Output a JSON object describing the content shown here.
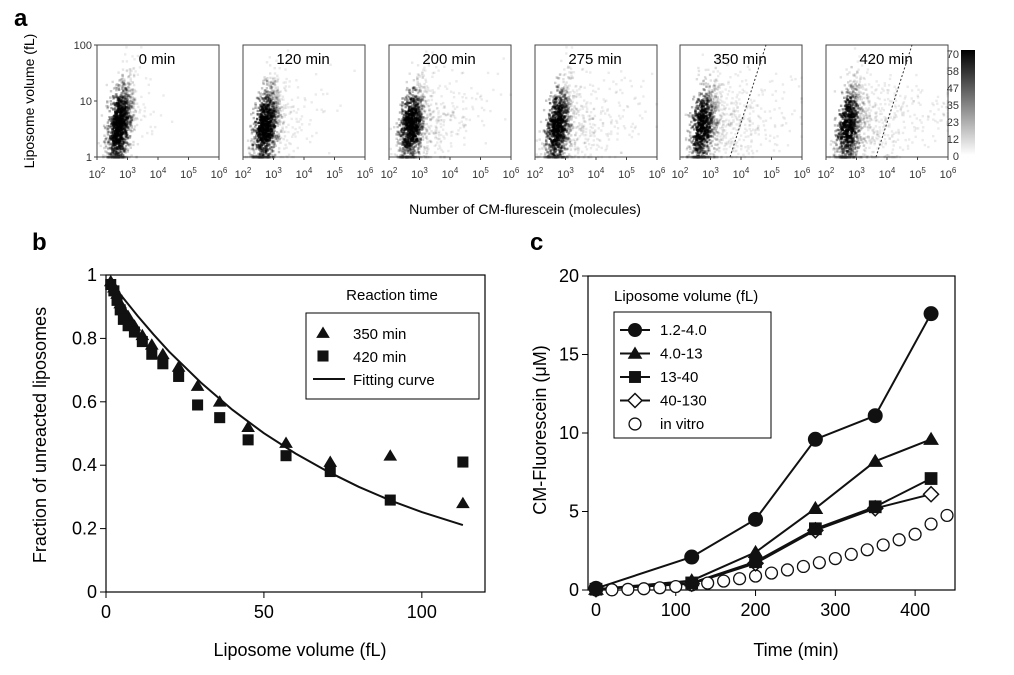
{
  "panel_labels": [
    "a",
    "b",
    "c"
  ],
  "chart_data": [
    {
      "panel": "a",
      "type": "heatmap",
      "ylabel": "Liposome volume (fL)",
      "xlabel": "Number of CM-flurescein (molecules)",
      "y_scale": "log",
      "x_scale": "log",
      "y_ticks": [
        "1",
        "10",
        "100"
      ],
      "x_ticks": [
        "10",
        "10",
        "10",
        "10",
        "10"
      ],
      "x_tick_exponents": [
        "2",
        "3",
        "4",
        "5",
        "6"
      ],
      "colorbar": {
        "ticks": [
          "70",
          "58",
          "47",
          "35",
          "23",
          "12",
          "0"
        ],
        "colors": [
          "#000000",
          "#ffffff"
        ]
      },
      "panels": [
        {
          "label": "0 min",
          "spread": 0.15,
          "divider": false
        },
        {
          "label": "120 min",
          "spread": 0.35,
          "divider": false
        },
        {
          "label": "200 min",
          "spread": 0.55,
          "divider": false
        },
        {
          "label": "275 min",
          "spread": 0.7,
          "divider": false
        },
        {
          "label": "350 min",
          "spread": 0.85,
          "divider": true
        },
        {
          "label": "420 min",
          "spread": 0.95,
          "divider": true
        }
      ]
    },
    {
      "panel": "b",
      "type": "scatter",
      "xlabel": "Liposome volume (fL)",
      "ylabel": "Fraction of unreacted liposomes",
      "xlim": [
        0,
        120
      ],
      "ylim": [
        0,
        1
      ],
      "x_ticks": [
        0,
        50,
        100
      ],
      "y_ticks": [
        0,
        0.2,
        0.4,
        0.6,
        0.8,
        1
      ],
      "legend_title": "Reaction time",
      "series": [
        {
          "name": "350 min",
          "marker": "triangle",
          "x": [
            1.5,
            2.5,
            3.5,
            4.5,
            5.5,
            7,
            9,
            11.5,
            14.5,
            18,
            23,
            29,
            36,
            45,
            57,
            71,
            90,
            113
          ],
          "y": [
            0.98,
            0.96,
            0.94,
            0.91,
            0.89,
            0.87,
            0.84,
            0.81,
            0.78,
            0.75,
            0.71,
            0.65,
            0.6,
            0.52,
            0.47,
            0.41,
            0.43,
            0.28
          ]
        },
        {
          "name": "420 min",
          "marker": "square",
          "x": [
            1.5,
            2.5,
            3.5,
            4.5,
            5.5,
            7,
            9,
            11.5,
            14.5,
            18,
            23,
            29,
            36,
            45,
            57,
            71,
            90,
            113
          ],
          "y": [
            0.97,
            0.95,
            0.92,
            0.89,
            0.86,
            0.84,
            0.82,
            0.79,
            0.75,
            0.72,
            0.68,
            0.59,
            0.55,
            0.48,
            0.43,
            0.38,
            0.29,
            0.41
          ]
        },
        {
          "name": "Fitting curve",
          "marker": "line",
          "x": [
            1,
            5,
            10,
            15,
            20,
            30,
            40,
            50,
            60,
            70,
            80,
            90,
            100,
            113
          ],
          "y": [
            0.986,
            0.933,
            0.871,
            0.813,
            0.758,
            0.661,
            0.575,
            0.501,
            0.437,
            0.381,
            0.332,
            0.289,
            0.252,
            0.211
          ]
        }
      ]
    },
    {
      "panel": "c",
      "type": "line",
      "xlabel": "Time (min)",
      "ylabel": "CM-Fluorescein (μM)",
      "xlim": [
        -10,
        450
      ],
      "ylim": [
        0,
        20
      ],
      "x_ticks": [
        0,
        100,
        200,
        300,
        400
      ],
      "y_ticks": [
        0,
        5,
        10,
        15,
        20
      ],
      "legend_title": "Liposome volume (fL)",
      "series": [
        {
          "name": "1.2-4.0",
          "marker": "circle-filled",
          "x": [
            0,
            120,
            200,
            275,
            350,
            420
          ],
          "y": [
            0.1,
            2.1,
            4.5,
            9.6,
            11.1,
            17.6
          ]
        },
        {
          "name": "4.0-13",
          "marker": "triangle",
          "x": [
            0,
            120,
            200,
            275,
            350,
            420
          ],
          "y": [
            0.05,
            0.6,
            2.4,
            5.2,
            8.2,
            9.6
          ]
        },
        {
          "name": "13-40",
          "marker": "square",
          "x": [
            0,
            120,
            200,
            275,
            350,
            420
          ],
          "y": [
            0.05,
            0.45,
            1.8,
            3.9,
            5.3,
            7.1
          ]
        },
        {
          "name": "40-130",
          "marker": "diamond-open",
          "x": [
            0,
            120,
            200,
            275,
            350,
            420
          ],
          "y": [
            0.05,
            0.4,
            1.7,
            3.8,
            5.2,
            6.1
          ]
        },
        {
          "name": "in vitro",
          "marker": "circle-open",
          "x": [
            0,
            20,
            40,
            60,
            80,
            100,
            120,
            140,
            160,
            180,
            200,
            220,
            240,
            260,
            280,
            300,
            320,
            340,
            360,
            380,
            400,
            420,
            440
          ],
          "y": [
            0,
            0.01,
            0.04,
            0.08,
            0.14,
            0.22,
            0.32,
            0.44,
            0.57,
            0.72,
            0.89,
            1.08,
            1.28,
            1.5,
            1.74,
            2.0,
            2.27,
            2.56,
            2.87,
            3.2,
            3.55,
            4.2,
            4.75
          ]
        }
      ]
    }
  ]
}
